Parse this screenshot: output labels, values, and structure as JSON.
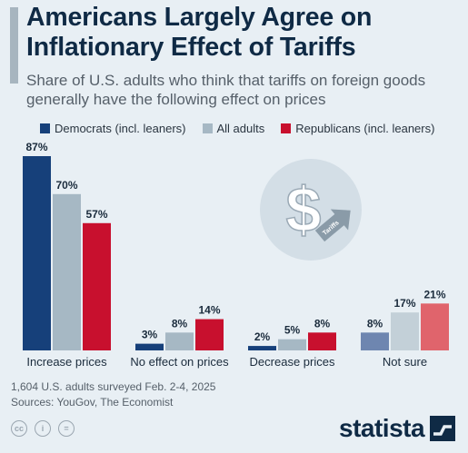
{
  "header": {
    "title_line1": "Americans Largely Agree on",
    "title_line2": "Inflationary Effect of Tariffs",
    "subtitle_line1": "Share of U.S. adults who think that tariffs on foreign goods",
    "subtitle_line2": "generally have the following effect on prices"
  },
  "legend": [
    {
      "label": "Democrats (incl. leaners)",
      "color": "#16407a"
    },
    {
      "label": "All adults",
      "color": "#a6b8c4"
    },
    {
      "label": "Republicans (incl. leaners)",
      "color": "#c8102e"
    }
  ],
  "chart_data": {
    "type": "bar",
    "categories": [
      "Increase prices",
      "No effect on prices",
      "Decrease prices",
      "Not sure"
    ],
    "series": [
      {
        "name": "Democrats (incl. leaners)",
        "values": [
          87,
          3,
          2,
          8
        ],
        "color": "#16407a"
      },
      {
        "name": "All adults",
        "values": [
          70,
          8,
          5,
          17
        ],
        "color": "#a6b8c4"
      },
      {
        "name": "Republicans (incl. leaners)",
        "values": [
          57,
          14,
          8,
          21
        ],
        "color": "#c8102e"
      }
    ],
    "value_suffix": "%",
    "not_sure_colors": [
      "#6e86b0",
      "#c3d0d8",
      "#e0646c"
    ],
    "ylim": [
      0,
      100
    ],
    "grid": false,
    "legend_placement": "top-left"
  },
  "illustration": {
    "icon": "dollar-tariff-icon",
    "arrow_label": "Tariffs"
  },
  "footer": {
    "note": "1,604 U.S. adults surveyed Feb. 2-4, 2025",
    "sources": "Sources: YouGov, The Economist",
    "license_icons": [
      "cc-icon",
      "by-icon",
      "equals-icon"
    ],
    "license_glyphs": [
      "cc",
      "i",
      "="
    ],
    "brand": "statista"
  }
}
